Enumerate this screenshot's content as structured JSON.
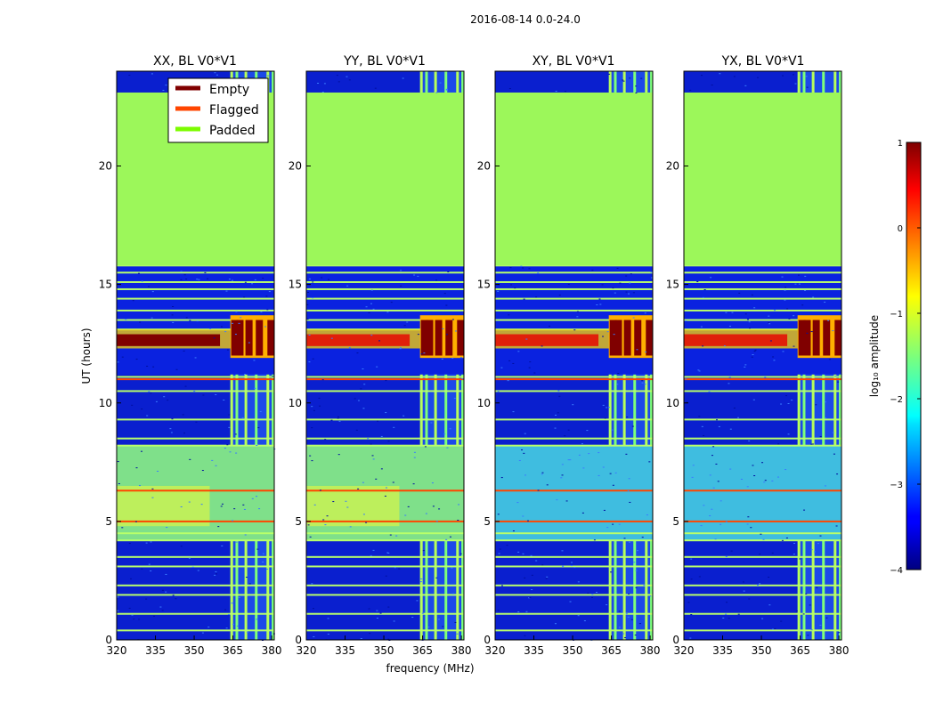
{
  "suptitle": "2016-08-14 0.0-24.0",
  "colors": {
    "empty": "#800000",
    "flagged": "#ff4500",
    "padded": "#7cfc00",
    "padded_fill": "#9cf75a",
    "noise_low": "#0a1fcf",
    "frame": "#000000"
  },
  "chart_data": [
    {
      "type": "heatmap",
      "title": "XX, BL V0*V1",
      "xlabel": "",
      "ylabel": "UT (hours)",
      "xlim": [
        320,
        381
      ],
      "ylim": [
        0,
        24
      ],
      "xticks": [
        "320",
        "335",
        "350",
        "365",
        "380"
      ],
      "yticks": [
        "0",
        "5",
        "10",
        "15",
        "20"
      ],
      "padded_ut_range": [
        15.8,
        23.1
      ],
      "band_mhz": [
        364,
        381
      ],
      "strong_rfi_ut": [
        12.4,
        12.9
      ]
    },
    {
      "type": "heatmap",
      "title": "YY, BL V0*V1",
      "xlabel": "frequency (MHz)",
      "ylabel": "",
      "xlim": [
        320,
        381
      ],
      "ylim": [
        0,
        24
      ],
      "xticks": [
        "320",
        "335",
        "350",
        "365",
        "380"
      ],
      "yticks": [
        "0",
        "5",
        "10",
        "15",
        "20"
      ],
      "padded_ut_range": [
        15.8,
        23.1
      ],
      "band_mhz": [
        364,
        381
      ],
      "strong_rfi_ut": [
        12.4,
        12.9
      ]
    },
    {
      "type": "heatmap",
      "title": "XY, BL V0*V1",
      "xlabel": "",
      "ylabel": "",
      "xlim": [
        320,
        381
      ],
      "ylim": [
        0,
        24
      ],
      "xticks": [
        "320",
        "335",
        "350",
        "365",
        "380"
      ],
      "yticks": [
        "0",
        "5",
        "10",
        "15",
        "20"
      ],
      "padded_ut_range": [
        15.8,
        23.1
      ],
      "band_mhz": [
        364,
        381
      ],
      "strong_rfi_ut": [
        12.4,
        12.9
      ]
    },
    {
      "type": "heatmap",
      "title": "YX, BL V0*V1",
      "xlabel": "",
      "ylabel": "",
      "xlim": [
        320,
        381
      ],
      "ylim": [
        0,
        24
      ],
      "xticks": [
        "320",
        "335",
        "350",
        "365",
        "380"
      ],
      "yticks": [
        "0",
        "5",
        "10",
        "15",
        "20"
      ],
      "padded_ut_range": [
        15.8,
        23.1
      ],
      "band_mhz": [
        364,
        381
      ],
      "strong_rfi_ut": [
        12.4,
        12.9
      ]
    }
  ],
  "legend": {
    "location": "upper-right of first panel",
    "items": [
      {
        "label": "Empty",
        "color": "#800000"
      },
      {
        "label": "Flagged",
        "color": "#ff4500"
      },
      {
        "label": "Padded",
        "color": "#7cfc00"
      }
    ]
  },
  "colorbar": {
    "label": "log₁₀ amplitude",
    "range": [
      -4,
      1
    ],
    "ticks": [
      "1",
      "0",
      "−1",
      "−2",
      "−3",
      "−4"
    ]
  }
}
